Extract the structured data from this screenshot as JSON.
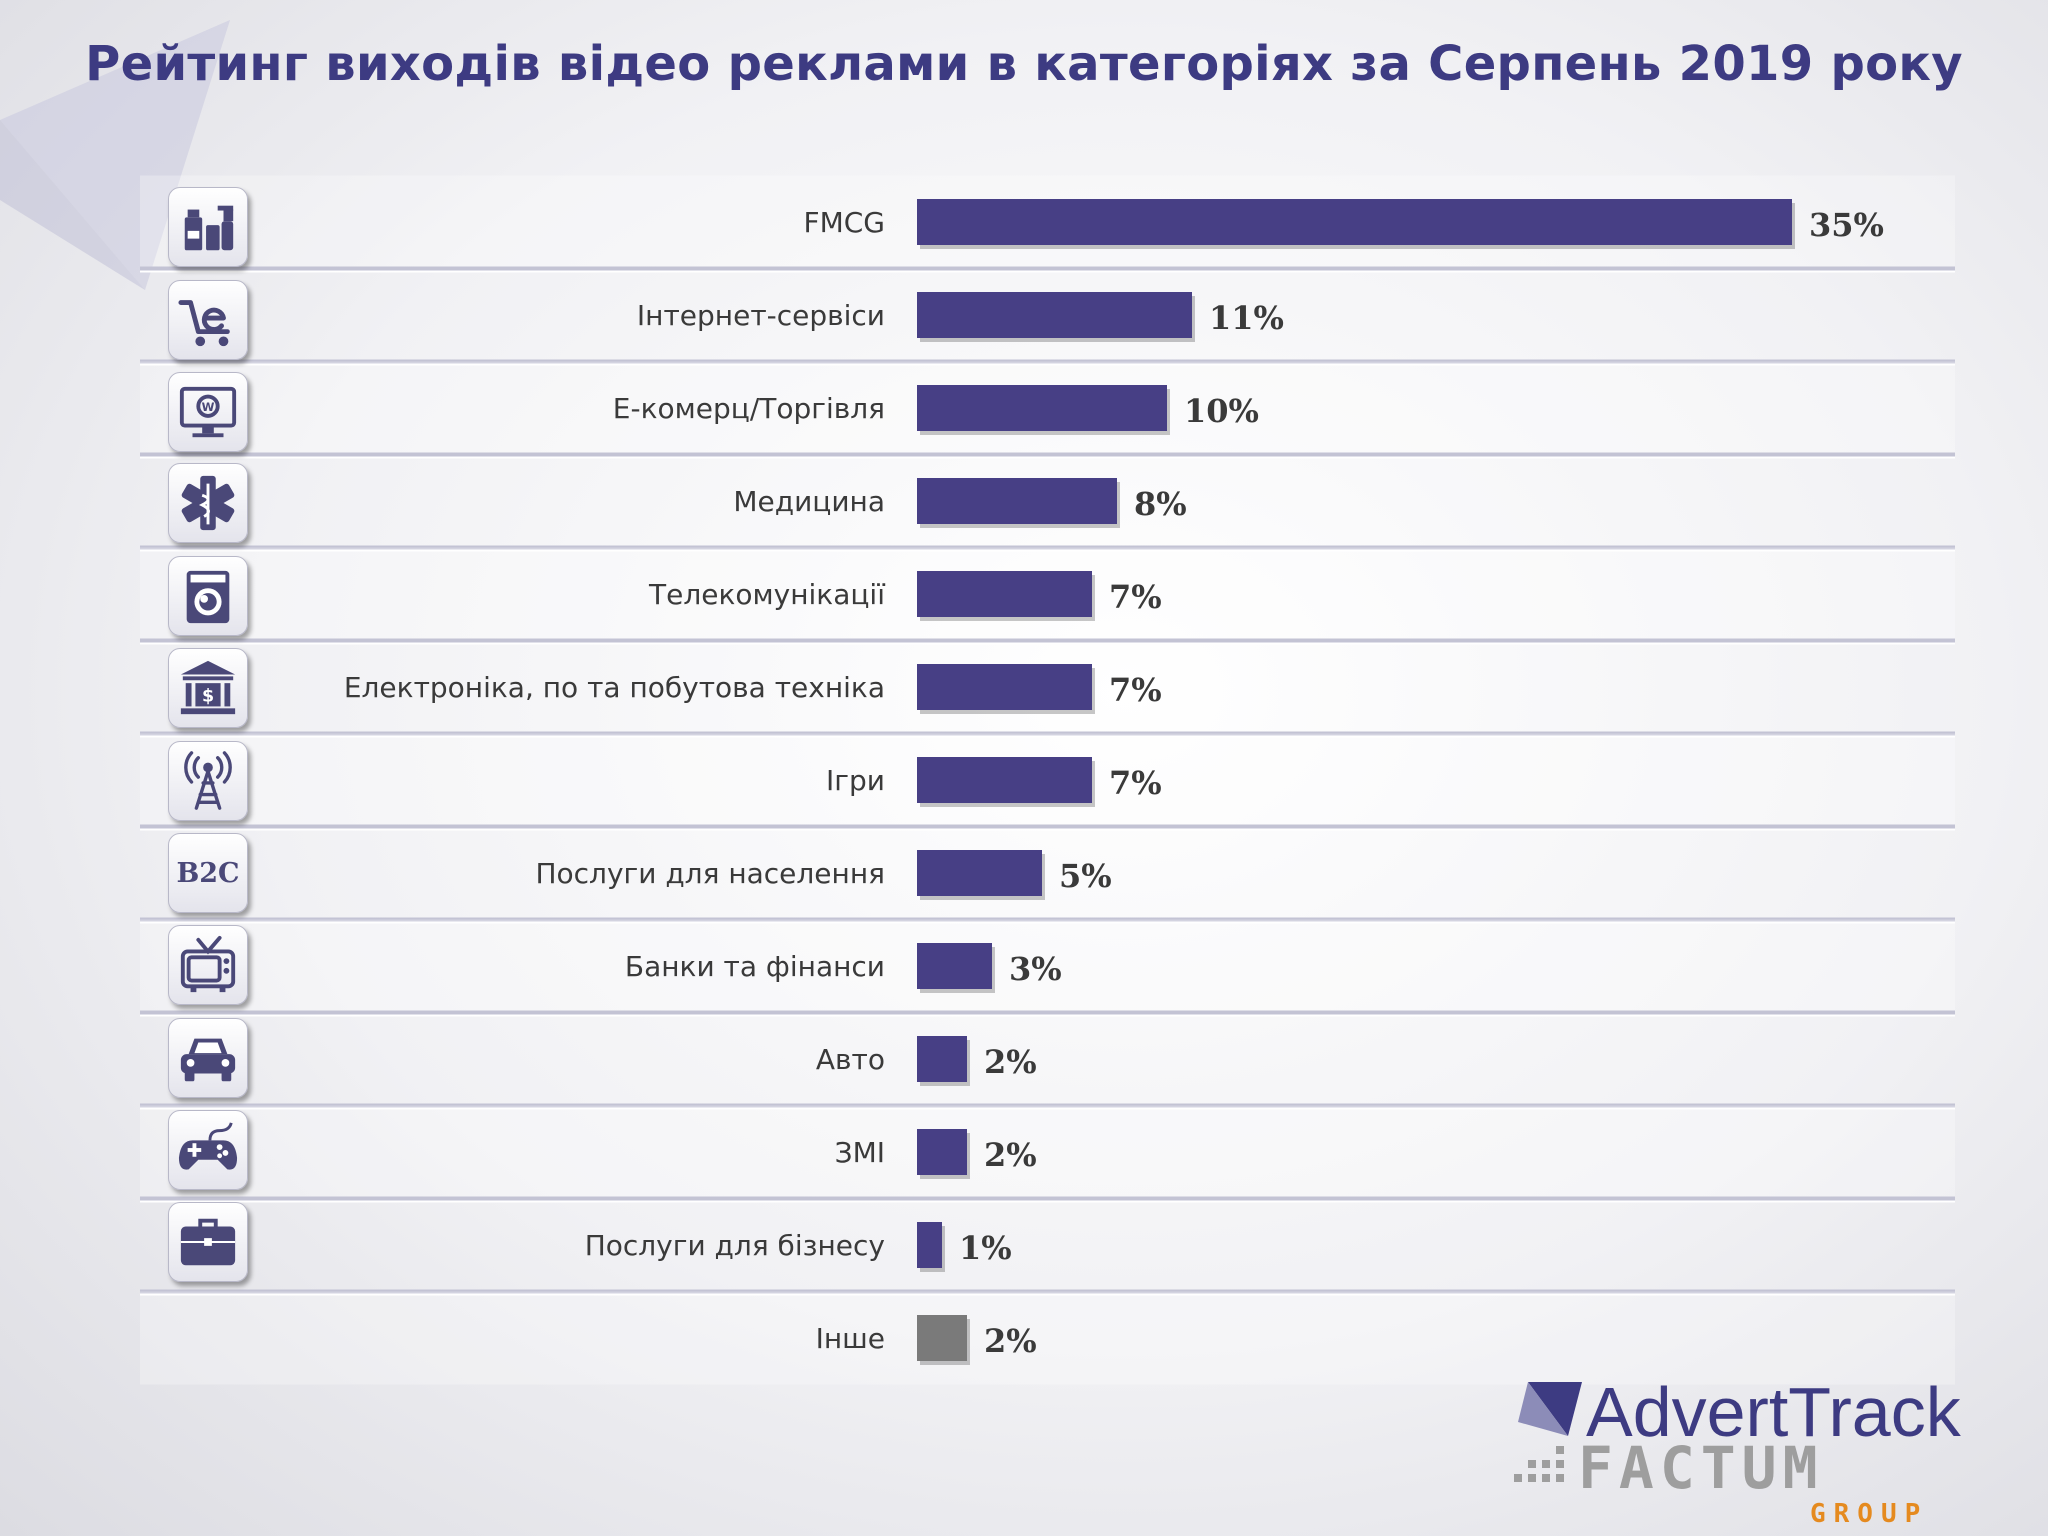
{
  "page": {
    "title": "Рейтинг виходів відео реклами в категоріях за Серпень 2019 року"
  },
  "chart_data": {
    "type": "bar",
    "orientation": "horizontal",
    "title": "Рейтинг виходів відео реклами в категоріях за Серпень 2019 року",
    "xlabel": "",
    "ylabel": "",
    "xlim": [
      0,
      35
    ],
    "grid": false,
    "categories": [
      "FMCG",
      "Інтернет-сервіси",
      "Е-комерц/Торгівля",
      "Медицина",
      "Телекомунікації",
      "Електроніка, по та побутова техніка",
      "Ігри",
      "Послуги для населення",
      "Банки та фінанси",
      "Авто",
      "ЗМІ",
      "Послуги для бізнесу",
      "Інше"
    ],
    "values": [
      35,
      11,
      10,
      8,
      7,
      7,
      7,
      5,
      3,
      2,
      2,
      1,
      2
    ],
    "value_labels": [
      "35%",
      "11%",
      "10%",
      "8%",
      "7%",
      "7%",
      "7%",
      "5%",
      "3%",
      "2%",
      "2%",
      "1%",
      "2%"
    ],
    "colors": [
      "#473f85",
      "#473f85",
      "#473f85",
      "#473f85",
      "#473f85",
      "#473f85",
      "#473f85",
      "#473f85",
      "#473f85",
      "#473f85",
      "#473f85",
      "#473f85",
      "#7a7a7a"
    ]
  },
  "icons": [
    {
      "name": "fmcg-products-icon"
    },
    {
      "name": "ecommerce-cart-icon"
    },
    {
      "name": "web-monitor-icon"
    },
    {
      "name": "medical-star-icon"
    },
    {
      "name": "washing-machine-icon"
    },
    {
      "name": "bank-building-icon"
    },
    {
      "name": "radio-tower-icon"
    },
    {
      "name": "b2c-icon",
      "text": "B2C"
    },
    {
      "name": "tv-icon"
    },
    {
      "name": "car-icon"
    },
    {
      "name": "gamepad-icon"
    },
    {
      "name": "briefcase-icon"
    }
  ],
  "logo": {
    "line1": "AdvertTrack",
    "line2": "FACTUM",
    "line3": "GROUP"
  }
}
